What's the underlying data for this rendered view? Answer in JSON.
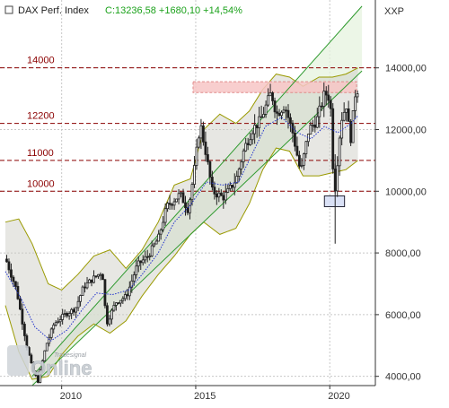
{
  "header": {
    "index_name": "DAX Perf. Index",
    "quote": "C:13236,58 +1680,10 +14,54%",
    "currency": "XXP",
    "quote_color": "#1aa11a"
  },
  "watermark": {
    "brand_small": "Tradesignal",
    "brand_big": "Online"
  },
  "chart_data": {
    "type": "candlestick",
    "title": "DAX Perf. Index",
    "x_ticks": [
      "2010",
      "2015",
      "2020"
    ],
    "y_ticks": [
      "4000,00",
      "6000,00",
      "8000,00",
      "10000,00",
      "12000,00",
      "14000,00"
    ],
    "ylim": [
      3700,
      16200
    ],
    "xlim": [
      2007.7,
      2021.7
    ],
    "grid": true,
    "colors": {
      "up": "#ffffff",
      "down": "#1a1a1a",
      "wick": "#222222",
      "sma": "#2233cc",
      "band": "#9a9a00",
      "channel": "#2f9a2f",
      "level": "#8b0000",
      "resistance_zone": "#f7c6c6",
      "support_zone": "#d4dcf5"
    },
    "horizontal_levels": [
      {
        "label": "14000",
        "value": 14000
      },
      {
        "label": "12200",
        "value": 12200
      },
      {
        "label": "11000",
        "value": 11000
      },
      {
        "label": "10000",
        "value": 10000
      }
    ],
    "zones": [
      {
        "name": "resistance",
        "x": [
          2014.9,
          2021.0
        ],
        "y": [
          13200,
          13550
        ]
      },
      {
        "name": "support",
        "x": [
          2019.8,
          2020.55
        ],
        "y": [
          9500,
          9850
        ]
      }
    ],
    "channel_lines": [
      {
        "from": [
          2008.9,
          4000
        ],
        "to": [
          2021.2,
          16000
        ]
      },
      {
        "from": [
          2008.9,
          3700
        ],
        "to": [
          2021.2,
          13900
        ]
      }
    ],
    "ohlc_anchors": [
      [
        2008.0,
        7800
      ],
      [
        2008.4,
        6800
      ],
      [
        2008.8,
        4900
      ],
      [
        2009.0,
        4200
      ],
      [
        2009.2,
        3850
      ],
      [
        2009.5,
        5000
      ],
      [
        2009.8,
        5700
      ],
      [
        2010.2,
        6000
      ],
      [
        2010.6,
        6200
      ],
      [
        2010.9,
        6900
      ],
      [
        2011.3,
        7200
      ],
      [
        2011.6,
        7400
      ],
      [
        2011.75,
        5700
      ],
      [
        2012.1,
        6400
      ],
      [
        2012.5,
        6600
      ],
      [
        2012.9,
        7600
      ],
      [
        2013.3,
        7900
      ],
      [
        2013.7,
        8500
      ],
      [
        2014.0,
        9500
      ],
      [
        2014.5,
        9900
      ],
      [
        2014.8,
        9400
      ],
      [
        2015.0,
        10500
      ],
      [
        2015.25,
        12200
      ],
      [
        2015.45,
        11300
      ],
      [
        2015.7,
        10000
      ],
      [
        2016.1,
        9800
      ],
      [
        2016.3,
        10000
      ],
      [
        2016.6,
        10400
      ],
      [
        2016.9,
        11400
      ],
      [
        2017.2,
        12000
      ],
      [
        2017.5,
        12300
      ],
      [
        2017.9,
        13200
      ],
      [
        2018.1,
        12500
      ],
      [
        2018.4,
        12800
      ],
      [
        2018.7,
        11900
      ],
      [
        2019.0,
        10600
      ],
      [
        2019.3,
        12000
      ],
      [
        2019.6,
        12300
      ],
      [
        2019.9,
        13200
      ],
      [
        2020.1,
        13000
      ],
      [
        2020.25,
        9800
      ],
      [
        2020.5,
        12300
      ],
      [
        2020.7,
        12800
      ],
      [
        2020.85,
        11600
      ],
      [
        2021.05,
        13300
      ]
    ],
    "sma_anchors": [
      [
        2007.9,
        7400
      ],
      [
        2008.5,
        6500
      ],
      [
        2009.0,
        5600
      ],
      [
        2009.6,
        5150
      ],
      [
        2010.2,
        5500
      ],
      [
        2010.8,
        6200
      ],
      [
        2011.3,
        6700
      ],
      [
        2011.9,
        6650
      ],
      [
        2012.5,
        6800
      ],
      [
        2013.0,
        7300
      ],
      [
        2013.6,
        8000
      ],
      [
        2014.2,
        9000
      ],
      [
        2014.8,
        9550
      ],
      [
        2015.4,
        10300
      ],
      [
        2016.0,
        10200
      ],
      [
        2016.6,
        10300
      ],
      [
        2017.1,
        11200
      ],
      [
        2017.6,
        12100
      ],
      [
        2018.2,
        12400
      ],
      [
        2018.8,
        11900
      ],
      [
        2019.3,
        11700
      ],
      [
        2019.8,
        12100
      ],
      [
        2020.3,
        11900
      ],
      [
        2020.8,
        12200
      ],
      [
        2021.05,
        12450
      ]
    ],
    "band_upper": [
      [
        2007.9,
        9000
      ],
      [
        2008.4,
        9100
      ],
      [
        2008.9,
        8300
      ],
      [
        2009.5,
        7000
      ],
      [
        2010.0,
        6800
      ],
      [
        2010.6,
        7300
      ],
      [
        2011.2,
        7900
      ],
      [
        2011.8,
        8100
      ],
      [
        2012.4,
        7500
      ],
      [
        2013.0,
        8100
      ],
      [
        2013.6,
        9000
      ],
      [
        2014.2,
        10200
      ],
      [
        2014.8,
        10400
      ],
      [
        2015.3,
        12000
      ],
      [
        2015.9,
        12500
      ],
      [
        2016.5,
        12200
      ],
      [
        2017.0,
        12600
      ],
      [
        2017.5,
        13300
      ],
      [
        2018.0,
        13800
      ],
      [
        2018.5,
        13700
      ],
      [
        2019.0,
        13400
      ],
      [
        2019.6,
        13700
      ],
      [
        2020.1,
        13700
      ],
      [
        2020.6,
        13800
      ],
      [
        2021.05,
        14000
      ]
    ],
    "band_lower": [
      [
        2007.9,
        6300
      ],
      [
        2008.4,
        4800
      ],
      [
        2008.9,
        3900
      ],
      [
        2009.5,
        4000
      ],
      [
        2010.0,
        4700
      ],
      [
        2010.6,
        5300
      ],
      [
        2011.2,
        5700
      ],
      [
        2011.8,
        5400
      ],
      [
        2012.4,
        5800
      ],
      [
        2013.0,
        6600
      ],
      [
        2013.6,
        7300
      ],
      [
        2014.2,
        7900
      ],
      [
        2014.8,
        8600
      ],
      [
        2015.3,
        9000
      ],
      [
        2015.9,
        8600
      ],
      [
        2016.5,
        8800
      ],
      [
        2017.0,
        9600
      ],
      [
        2017.5,
        10700
      ],
      [
        2018.0,
        11400
      ],
      [
        2018.5,
        11300
      ],
      [
        2019.0,
        10500
      ],
      [
        2019.6,
        10500
      ],
      [
        2020.1,
        10600
      ],
      [
        2020.6,
        10700
      ],
      [
        2021.05,
        11000
      ]
    ],
    "price_series": "monthly",
    "notes": "Monthly DAX candles 2008–2021 with Bollinger-style band, moving average and rising trend channel."
  }
}
